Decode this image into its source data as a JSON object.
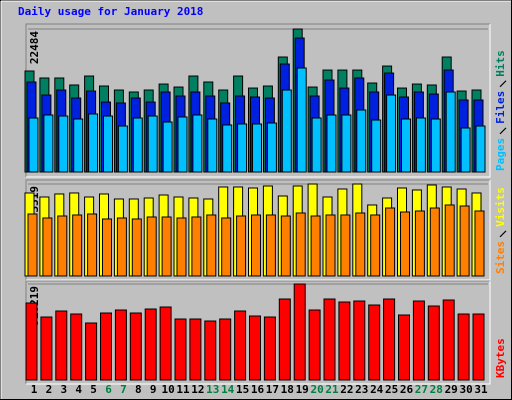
{
  "title": "Daily usage for January 2018",
  "chart_data": [
    {
      "type": "bar",
      "ylim": [
        0,
        22484
      ],
      "yticks": [
        22484
      ],
      "series": [
        {
          "name": "Hits",
          "color": "#008060",
          "values": [
            15880,
            14780,
            14780,
            13680,
            15090,
            13520,
            12890,
            12580,
            12890,
            13830,
            13360,
            15090,
            14150,
            12890,
            15090,
            13200,
            13520,
            18080,
            22484,
            13360,
            16030,
            16030,
            16030,
            13990,
            16660,
            13200,
            13830,
            13680,
            18080,
            12730,
            12890
          ]
        },
        {
          "name": "Files",
          "color": "#0020e0",
          "values": [
            14150,
            12100,
            12890,
            11630,
            12730,
            11000,
            10850,
            11630,
            11000,
            12580,
            11950,
            12580,
            11950,
            10850,
            11950,
            11790,
            11630,
            16980,
            21060,
            11950,
            14460,
            13200,
            14780,
            12580,
            15560,
            11790,
            12580,
            12260,
            16030,
            11320,
            11320
          ]
        },
        {
          "name": "Pages",
          "color": "#00c0ff",
          "values": [
            8490,
            8960,
            8800,
            8330,
            9120,
            8800,
            7230,
            8490,
            8800,
            7860,
            8650,
            8960,
            8330,
            7390,
            7550,
            7550,
            7700,
            12890,
            16350,
            8490,
            8960,
            8960,
            9750,
            8170,
            12100,
            8330,
            8490,
            8330,
            12580,
            6920,
            7230
          ]
        }
      ]
    },
    {
      "type": "bar",
      "ylim": [
        0,
        3319
      ],
      "yticks": [
        3319
      ],
      "series": [
        {
          "name": "Visits",
          "color": "#ffff00",
          "values": [
            2995,
            2850,
            2959,
            2995,
            2850,
            2959,
            2778,
            2778,
            2814,
            2922,
            2850,
            2814,
            2778,
            3211,
            3211,
            3175,
            3247,
            2886,
            3247,
            3319,
            2850,
            3139,
            3319,
            2562,
            2814,
            3175,
            3103,
            3283,
            3211,
            3139,
            2995
          ]
        },
        {
          "name": "Sites",
          "color": "#ff8000",
          "values": [
            2237,
            2093,
            2165,
            2201,
            2237,
            2057,
            2093,
            2057,
            2129,
            2129,
            2093,
            2129,
            2201,
            2093,
            2165,
            2201,
            2201,
            2165,
            2273,
            2165,
            2201,
            2201,
            2273,
            2201,
            2453,
            2309,
            2345,
            2453,
            2562,
            2526,
            2345
          ]
        }
      ]
    },
    {
      "type": "bar",
      "ylim": [
        0,
        910219
      ],
      "yticks": [
        910219
      ],
      "categories": [
        "1",
        "2",
        "3",
        "4",
        "5",
        "6",
        "7",
        "8",
        "9",
        "10",
        "11",
        "12",
        "13",
        "14",
        "15",
        "16",
        "17",
        "18",
        "19",
        "20",
        "21",
        "22",
        "23",
        "24",
        "25",
        "26",
        "27",
        "28",
        "29",
        "30",
        "31"
      ],
      "category_colors": [
        "#000000",
        "#000000",
        "#000000",
        "#000000",
        "#000000",
        "#008040",
        "#008040",
        "#000000",
        "#000000",
        "#000000",
        "#000000",
        "#000000",
        "#008040",
        "#008040",
        "#000000",
        "#000000",
        "#000000",
        "#000000",
        "#000000",
        "#008040",
        "#008040",
        "#000000",
        "#000000",
        "#000000",
        "#000000",
        "#000000",
        "#008040",
        "#008040",
        "#000000",
        "#000000",
        "#000000"
      ],
      "series": [
        {
          "name": "KBytes",
          "color": "#ff0000",
          "values": [
            730040,
            597300,
            654190,
            625750,
            540420,
            635230,
            663670,
            635230,
            673150,
            692110,
            578340,
            578340,
            559380,
            578340,
            654190,
            606780,
            597300,
            767960,
            910219,
            663670,
            767960,
            739520,
            749000,
            711080,
            767960,
            616270,
            749000,
            701590,
            758480,
            625750,
            625750
          ]
        }
      ]
    }
  ]
}
